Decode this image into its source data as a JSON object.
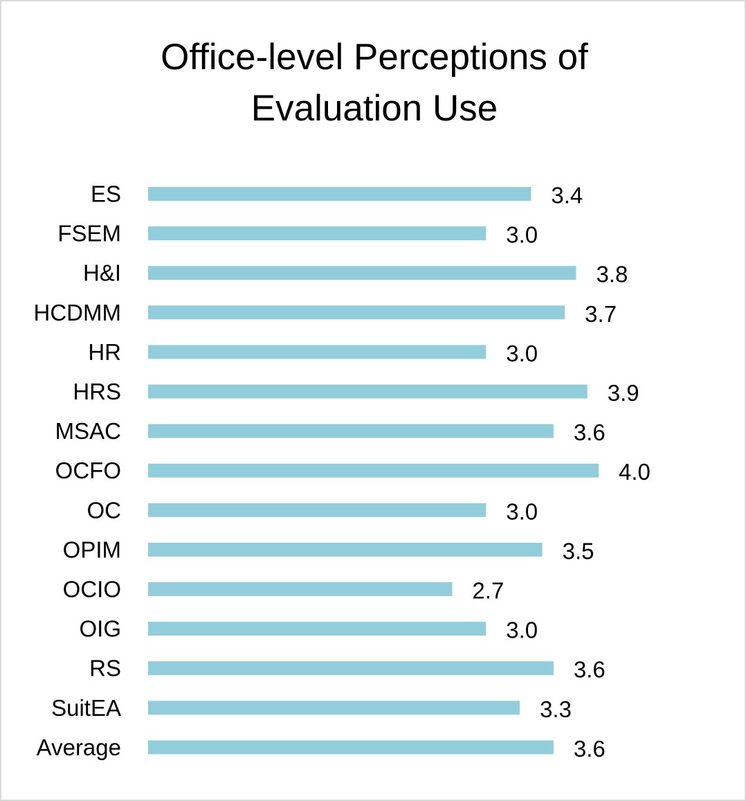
{
  "chart_data": {
    "type": "bar",
    "orientation": "horizontal",
    "title_lines": [
      "Office-level Perceptions of",
      "Evaluation Use"
    ],
    "categories": [
      "ES",
      "FSEM",
      "H&I",
      "HCDMM",
      "HR",
      "HRS",
      "MSAC",
      "OCFO",
      "OC",
      "OPIM",
      "OCIO",
      "OIG",
      "RS",
      "SuitEA",
      "Average"
    ],
    "values": [
      3.4,
      3.0,
      3.8,
      3.7,
      3.0,
      3.9,
      3.6,
      4.0,
      3.0,
      3.5,
      2.7,
      3.0,
      3.6,
      3.3,
      3.6
    ],
    "value_labels": [
      "3.4",
      "3.0",
      "3.8",
      "3.7",
      "3.0",
      "3.9",
      "3.6",
      "4.0",
      "3.0",
      "3.5",
      "2.7",
      "3.0",
      "3.6",
      "3.3",
      "3.6"
    ],
    "xlabel": "",
    "ylabel": "",
    "xlim": [
      0,
      4.0
    ],
    "grid": false,
    "legend": "none",
    "bar_color": "#92cddc"
  }
}
